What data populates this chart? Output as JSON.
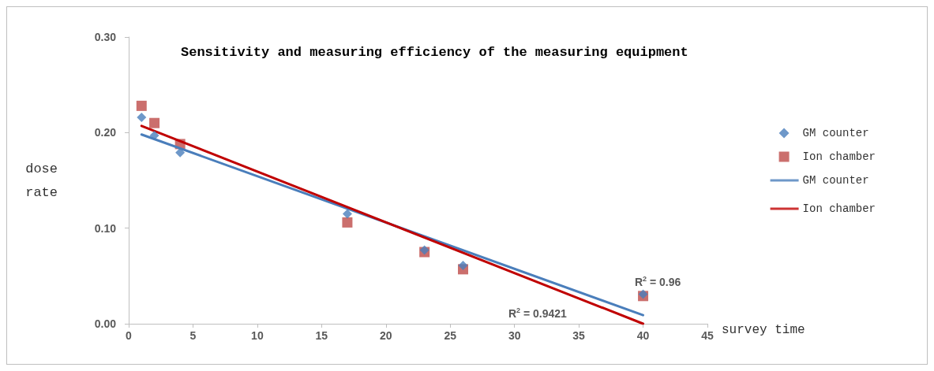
{
  "chart_data": {
    "type": "scatter",
    "title": "Sensitivity and measuring efficiency of the measuring equipment",
    "xlabel": "survey time",
    "ylabel": "dose\nrate",
    "xlim": [
      0,
      45
    ],
    "xticks": [
      0,
      5,
      10,
      15,
      20,
      25,
      30,
      35,
      40,
      45
    ],
    "ylim": [
      0,
      0.3
    ],
    "yticks": [
      {
        "value": 0,
        "label": "0.00"
      },
      {
        "value": 0.1,
        "label": "0.10"
      },
      {
        "value": 0.2,
        "label": "0.20"
      },
      {
        "value": 0.3,
        "label": "0.30"
      }
    ],
    "grid": false,
    "legend": "right",
    "series": [
      {
        "name": "GM counter",
        "marker": "diamond",
        "color": "#4a7ebb",
        "x": [
          1,
          2,
          4,
          17,
          23,
          26,
          40
        ],
        "values": [
          0.216,
          0.197,
          0.179,
          0.115,
          0.077,
          0.061,
          0.031
        ]
      },
      {
        "name": "Ion chamber",
        "marker": "square",
        "color": "#be4b48",
        "x": [
          1,
          2,
          4,
          17,
          23,
          26,
          40
        ],
        "values": [
          0.228,
          0.21,
          0.188,
          0.106,
          0.075,
          0.057,
          0.029
        ]
      },
      {
        "name": "GM counter",
        "type": "line",
        "marker": "none",
        "color": "#4a7ebb",
        "x": [
          1,
          40
        ],
        "values": [
          0.198,
          0.009
        ]
      },
      {
        "name": "Ion chamber",
        "type": "line",
        "marker": "none",
        "color": "#c00000",
        "x": [
          1,
          40
        ],
        "values": [
          0.207,
          0.0
        ]
      }
    ],
    "annotations": [
      "R$^{2}$ = 0.96",
      "R$^{2}$ = 0.9421"
    ]
  }
}
